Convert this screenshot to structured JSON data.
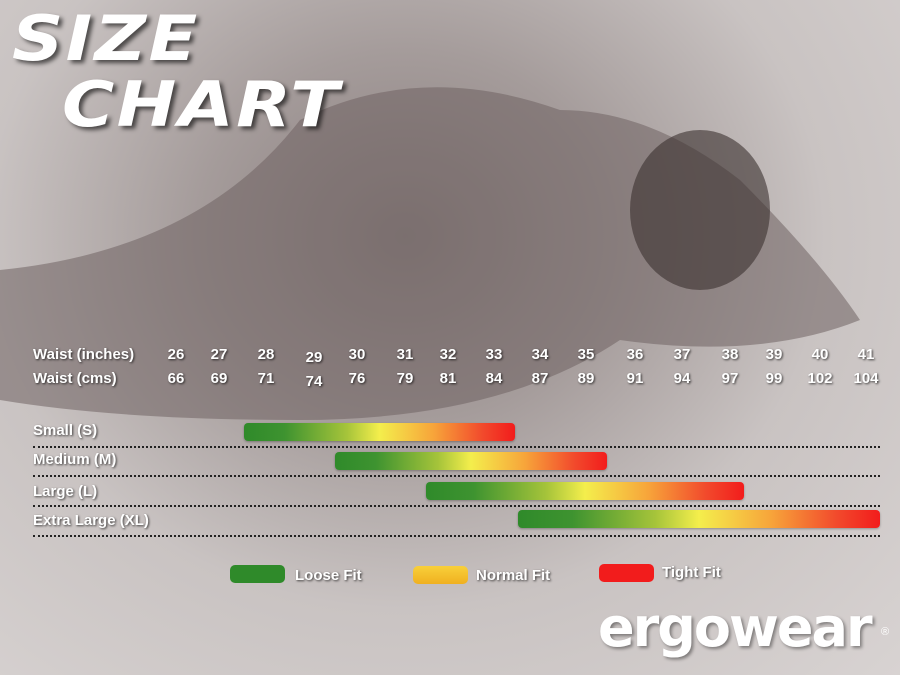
{
  "title": {
    "line1": "SIZE",
    "line2": "CHART"
  },
  "brand": {
    "logo": "ergowear",
    "registered": "®"
  },
  "chart_data": {
    "type": "bar",
    "title": "SIZE CHART",
    "row_labels": [
      "Waist (inches)",
      "Waist (cms)"
    ],
    "waist_inches": [
      26,
      27,
      28,
      29,
      30,
      31,
      32,
      33,
      34,
      35,
      36,
      37,
      38,
      39,
      40,
      41
    ],
    "waist_cms": [
      66,
      69,
      71,
      74,
      76,
      79,
      81,
      84,
      87,
      89,
      91,
      94,
      97,
      99,
      102,
      104
    ],
    "series": [
      {
        "name": "Small (S)",
        "start": 28,
        "end": 33
      },
      {
        "name": "Medium (M)",
        "start": 30,
        "end": 35
      },
      {
        "name": "Large (L)",
        "start": 32,
        "end": 38
      },
      {
        "name": "Extra Large (XL)",
        "start": 34,
        "end": 41
      }
    ],
    "legend": [
      {
        "label": "Loose Fit",
        "color": "#2f8a2a"
      },
      {
        "label": "Normal Fit",
        "color": "#f5c12a"
      },
      {
        "label": "Tight Fit",
        "color": "#f21c1c"
      }
    ]
  }
}
